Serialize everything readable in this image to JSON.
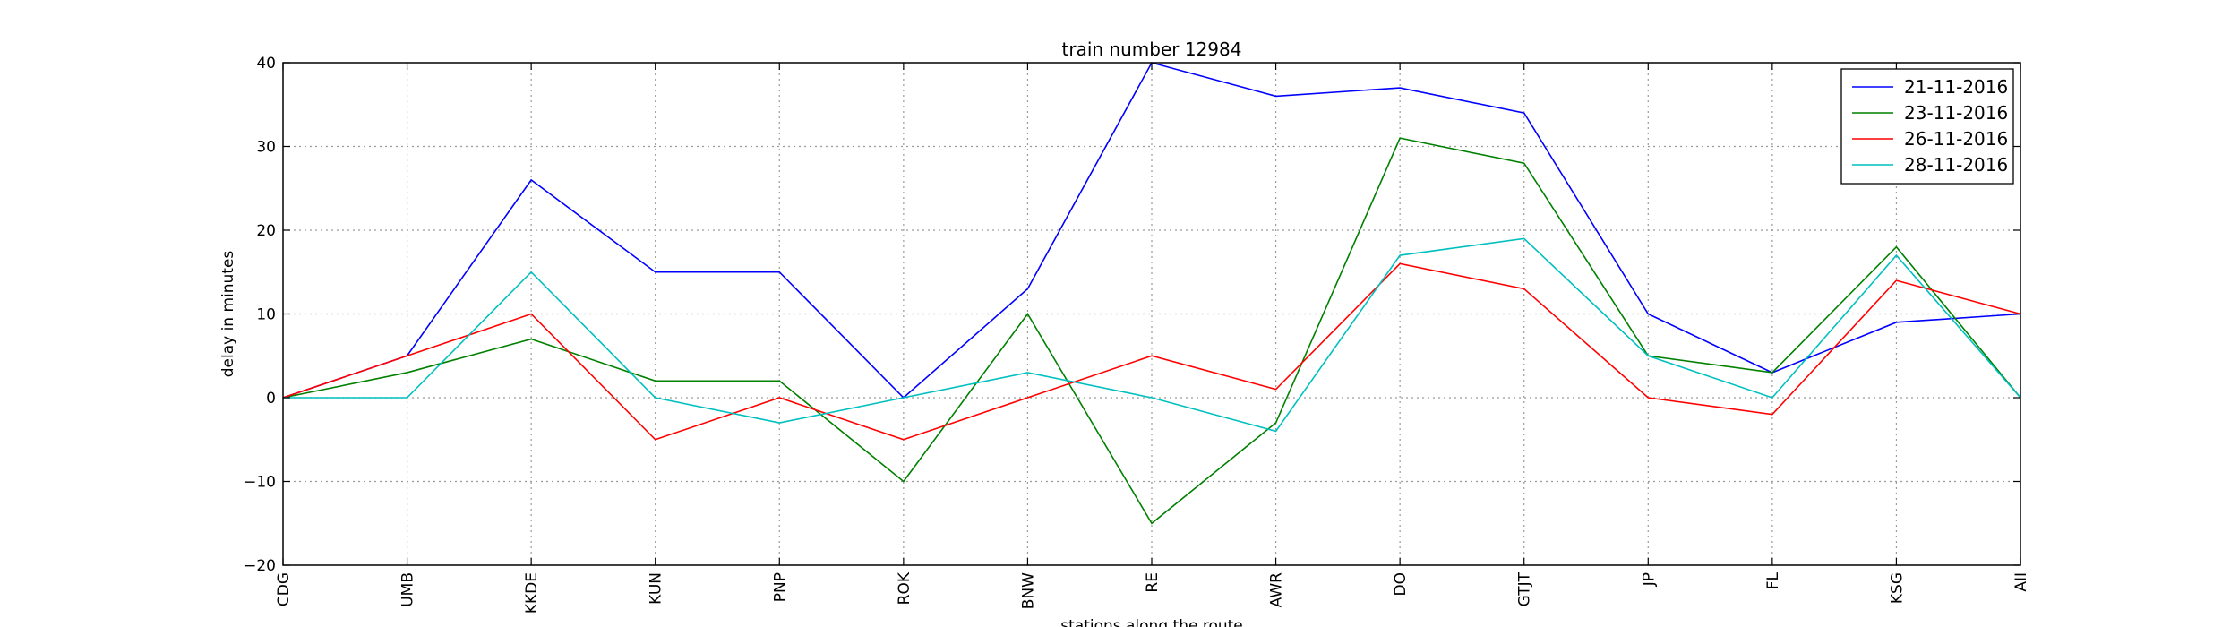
{
  "chart_data": {
    "type": "line",
    "title": "train number 12984",
    "xlabel": "stations along the route",
    "ylabel": "delay in minutes",
    "categories": [
      "CDG",
      "UMB",
      "KKDE",
      "KUN",
      "PNP",
      "ROK",
      "BNW",
      "RE",
      "AWR",
      "DO",
      "GTJT",
      "JP",
      "FL",
      "KSG",
      "AII"
    ],
    "ylim": [
      -20,
      40
    ],
    "yticks": [
      -20,
      -10,
      0,
      10,
      20,
      30,
      40
    ],
    "grid": true,
    "legend_position": "top-right",
    "series": [
      {
        "name": "21-11-2016",
        "color": "#0000ff",
        "values": [
          0,
          5,
          26,
          15,
          15,
          0,
          13,
          40,
          36,
          37,
          34,
          10,
          3,
          9,
          10
        ]
      },
      {
        "name": "23-11-2016",
        "color": "#008000",
        "values": [
          0,
          3,
          7,
          2,
          2,
          -10,
          10,
          -15,
          -3,
          31,
          28,
          5,
          3,
          18,
          0
        ]
      },
      {
        "name": "26-11-2016",
        "color": "#ff0000",
        "values": [
          0,
          5,
          10,
          -5,
          0,
          -5,
          0,
          5,
          1,
          16,
          13,
          0,
          -2,
          14,
          10
        ]
      },
      {
        "name": "28-11-2016",
        "color": "#00bfbf",
        "values": [
          0,
          0,
          15,
          0,
          -3,
          0,
          3,
          0,
          -4,
          17,
          19,
          5,
          0,
          17,
          0
        ]
      }
    ]
  }
}
